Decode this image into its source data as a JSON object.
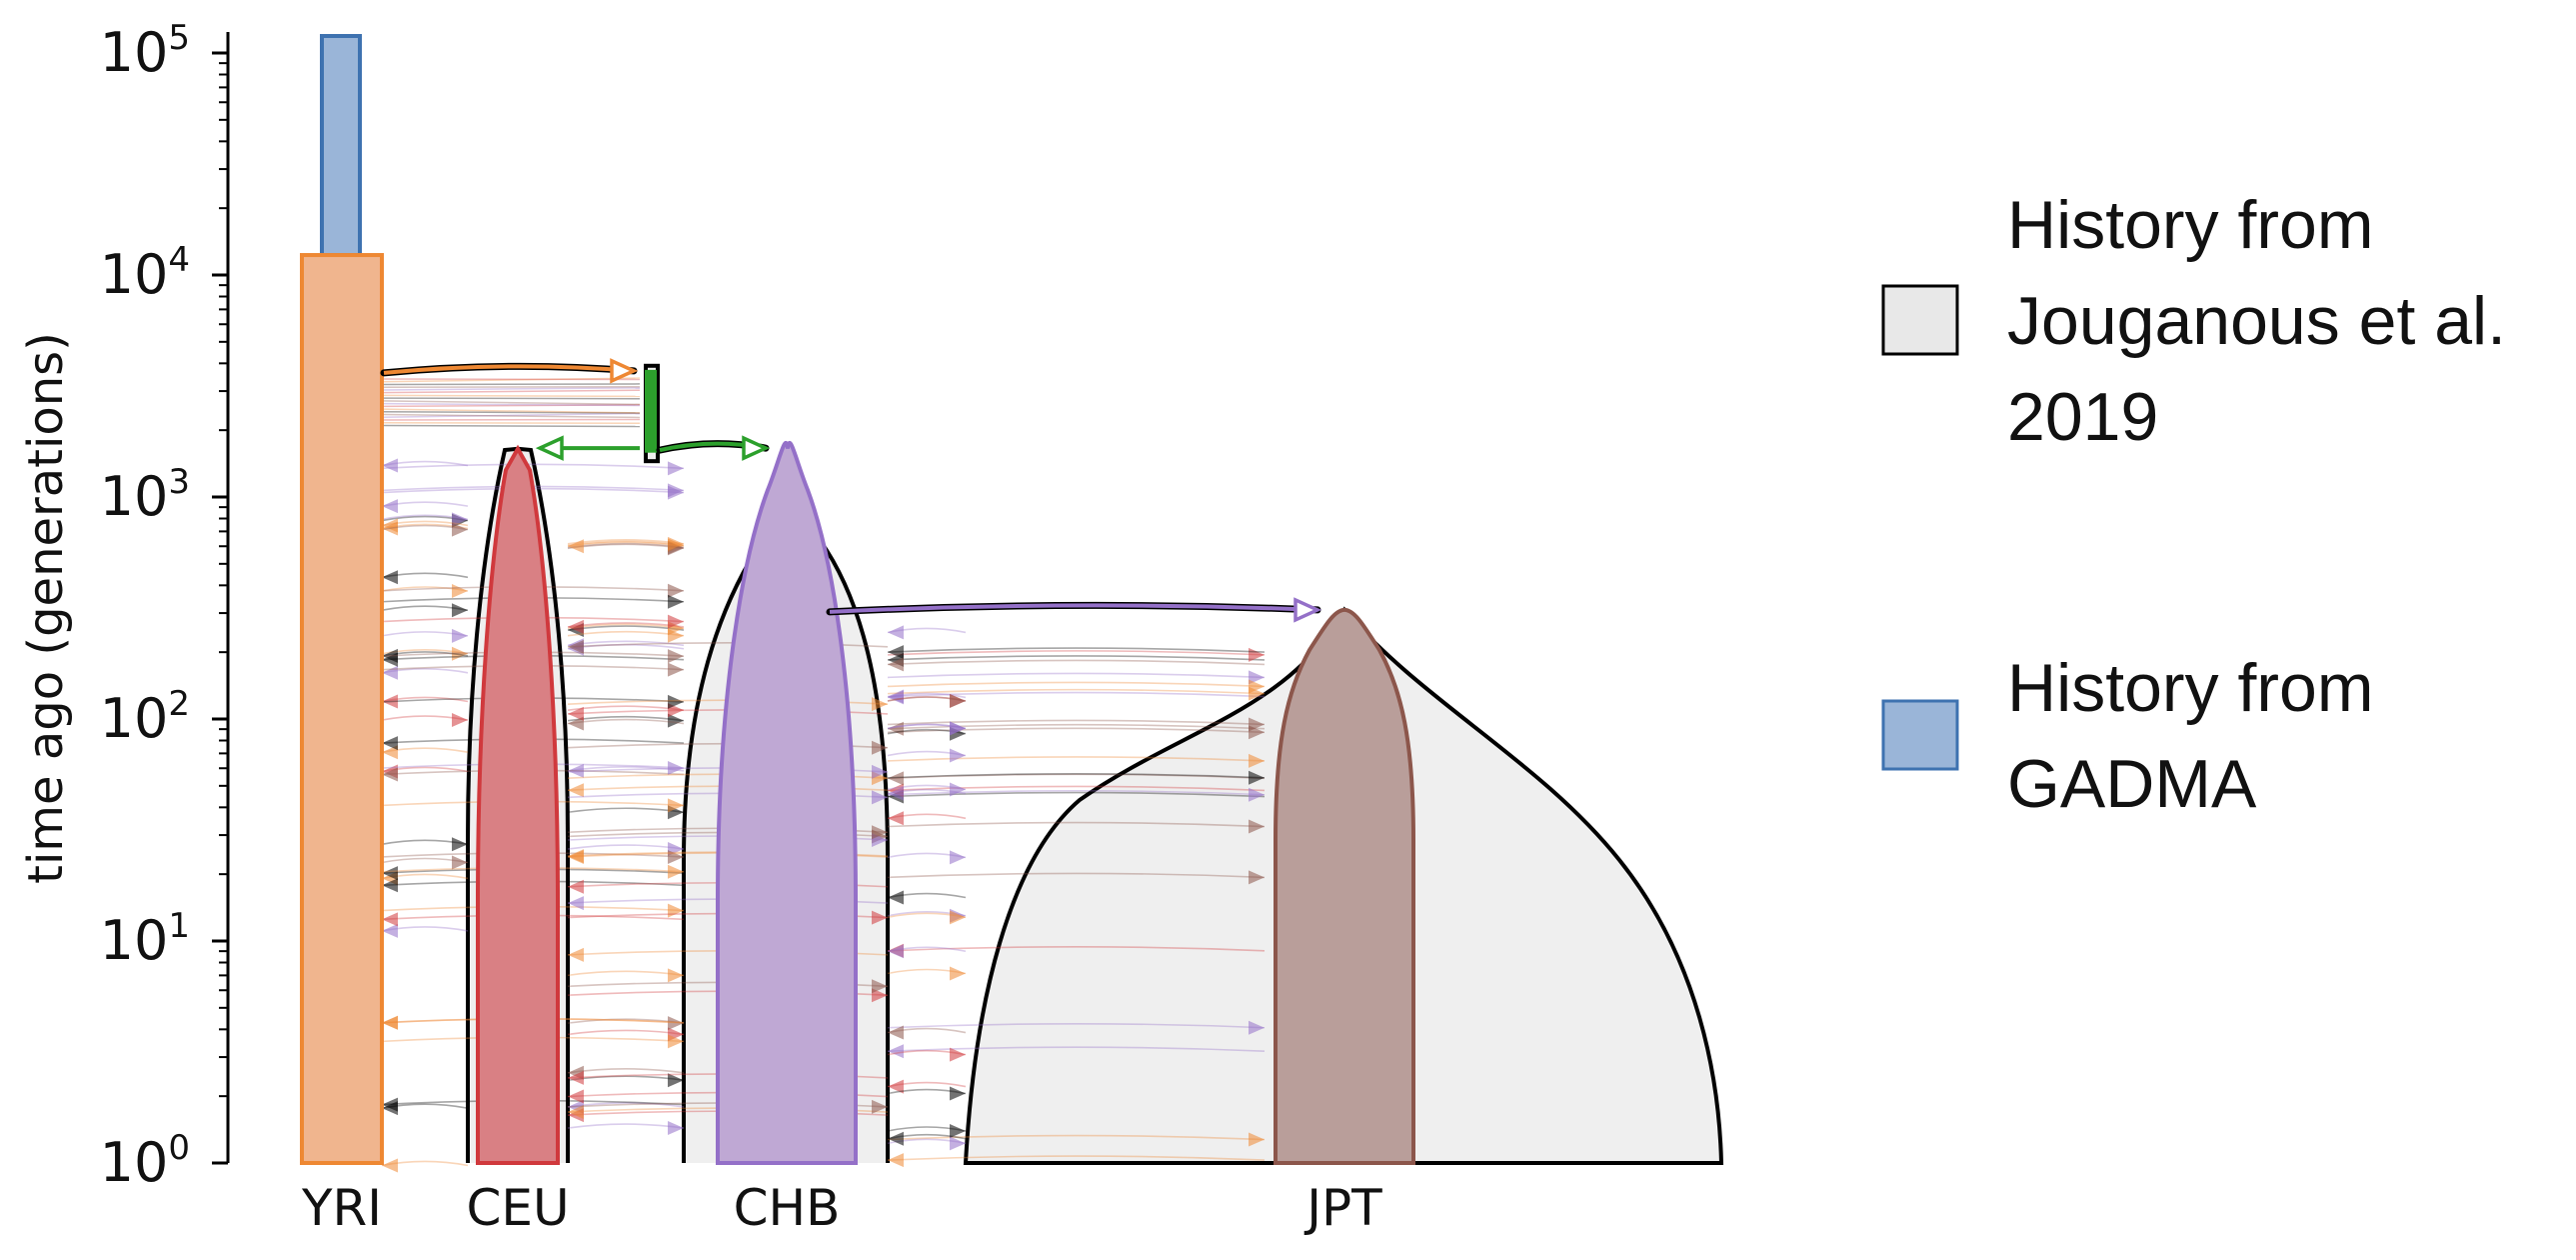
{
  "chart_data": {
    "type": "demographic-history",
    "ylabel": "time ago (generations)",
    "yscale": "log",
    "ylim": [
      1,
      130000
    ],
    "y_ticks": [
      {
        "value": 1,
        "base": "10",
        "exp": "0"
      },
      {
        "value": 10,
        "base": "10",
        "exp": "1"
      },
      {
        "value": 100,
        "base": "10",
        "exp": "2"
      },
      {
        "value": 1000,
        "base": "10",
        "exp": "3"
      },
      {
        "value": 10000,
        "base": "10",
        "exp": "4"
      },
      {
        "value": 100000,
        "base": "10",
        "exp": "5"
      }
    ],
    "populations": [
      {
        "name": "YRI",
        "color": "#ee8833",
        "fill": "#f0b58e"
      },
      {
        "name": "CEU",
        "color": "#d0393d",
        "fill": "#d98084"
      },
      {
        "name": "CHB",
        "color": "#9470c8",
        "fill": "#bfa8d4"
      },
      {
        "name": "JPT",
        "color": "#8c564b",
        "fill": "#b99e9a"
      }
    ],
    "split_times": [
      {
        "from": "YRI",
        "to": "ancestral OOA",
        "time": 3600
      },
      {
        "from": "ancestral OOA",
        "to": "CEU / CHB",
        "time": 1650
      },
      {
        "from": "CHB",
        "to": "JPT",
        "time": 310
      }
    ],
    "ancestral_expansion_time": 12300,
    "legend": [
      {
        "label": "History from Jouganous et al. 2019",
        "lines": [
          "History from",
          "Jouganous et al.",
          "2019"
        ],
        "fill": "#e8e8e8",
        "edge": "#000000"
      },
      {
        "label": "History from GADMA",
        "lines": [
          "History from",
          "GADMA"
        ],
        "fill": "#9ab5d8",
        "edge": "#3e72b0"
      }
    ],
    "colors": {
      "gadma_edge": "#3e72b0",
      "ref_edge": "#000000",
      "ref_fill": "#efefef",
      "ooa_color": "#2ca02c"
    }
  }
}
